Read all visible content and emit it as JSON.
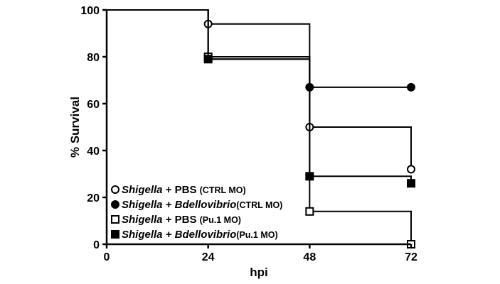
{
  "chart_data": {
    "type": "line",
    "subtype": "kaplan-meier step",
    "xlabel": "hpi",
    "ylabel": "% Survival",
    "xlim": [
      0,
      72
    ],
    "ylim": [
      0,
      100
    ],
    "xticks": [
      0,
      24,
      48,
      72
    ],
    "yticks": [
      0,
      20,
      40,
      60,
      80,
      100
    ],
    "grid": false,
    "legend_position": "lower-left",
    "series": [
      {
        "name_italic": "Shigella",
        "name_rest": " + PBS",
        "group": "(CTRL MO)",
        "marker": "open-circle",
        "color": "#000000",
        "steps": [
          [
            0,
            100
          ],
          [
            24,
            94
          ],
          [
            48,
            50
          ],
          [
            72,
            32
          ]
        ],
        "points": [
          [
            24,
            94
          ],
          [
            48,
            50
          ],
          [
            72,
            32
          ]
        ]
      },
      {
        "name_italic": "Shigella + Bdellovibrio",
        "name_rest": "",
        "group": "(CTRL MO)",
        "marker": "filled-circle",
        "color": "#000000",
        "steps": [
          [
            0,
            100
          ],
          [
            24,
            79
          ],
          [
            48,
            67
          ],
          [
            72,
            67
          ]
        ],
        "points": [
          [
            48,
            67
          ],
          [
            72,
            67
          ]
        ]
      },
      {
        "name_italic": "Shigella",
        "name_rest": " + PBS",
        "group": "(Pu.1 MO)",
        "marker": "open-square",
        "color": "#000000",
        "steps": [
          [
            0,
            100
          ],
          [
            24,
            80
          ],
          [
            48,
            14
          ],
          [
            72,
            0
          ]
        ],
        "points": [
          [
            24,
            80
          ],
          [
            48,
            14
          ],
          [
            72,
            0
          ]
        ]
      },
      {
        "name_italic": "Shigella + Bdellovibrio",
        "name_rest": "",
        "group": "(Pu.1 MO)",
        "marker": "filled-square",
        "color": "#000000",
        "steps": [
          [
            0,
            100
          ],
          [
            24,
            79
          ],
          [
            48,
            29
          ],
          [
            72,
            26
          ]
        ],
        "points": [
          [
            24,
            79
          ],
          [
            48,
            29
          ],
          [
            72,
            26
          ]
        ]
      }
    ]
  }
}
